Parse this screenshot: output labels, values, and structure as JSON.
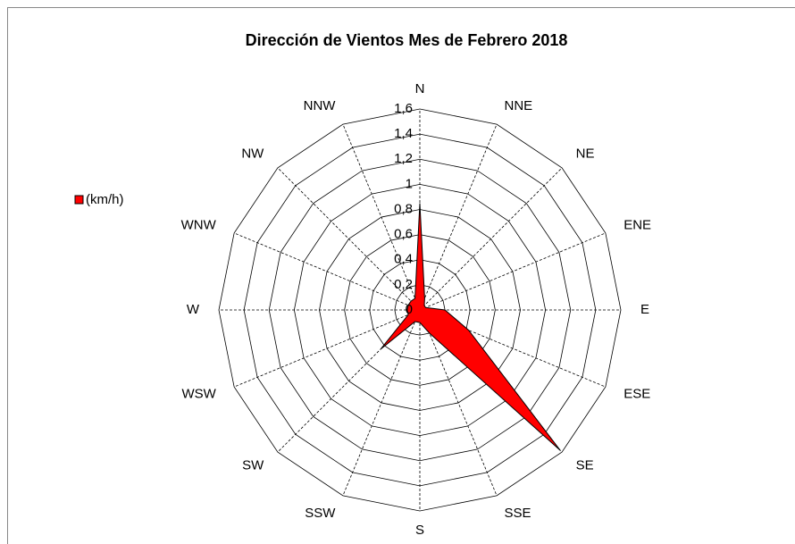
{
  "chart_data": {
    "type": "radar",
    "title": "Dirección de Vientos Mes de Febrero 2018",
    "categories": [
      "N",
      "NNE",
      "NE",
      "ENE",
      "E",
      "ESE",
      "SE",
      "SSE",
      "S",
      "SSW",
      "SW",
      "WSW",
      "W",
      "WNW",
      "NW",
      "NNW"
    ],
    "series": [
      {
        "name": "(km/h)",
        "color": "#ff0000",
        "values": [
          0.85,
          0.1,
          0.05,
          0.05,
          0.2,
          0.42,
          1.58,
          0.2,
          0.1,
          0.1,
          0.44,
          0.1,
          0.1,
          0.1,
          0.1,
          0.1
        ]
      }
    ],
    "ylim": [
      0,
      1.6
    ],
    "yticks": [
      0,
      {
        "value": 0.2,
        "label": "0,2"
      },
      {
        "value": 0.4,
        "label": "0,4"
      },
      {
        "value": 0.6,
        "label": "0,6"
      },
      {
        "value": 0.8,
        "label": "0,8"
      },
      1,
      {
        "value": 1.2,
        "label": "1,2"
      },
      {
        "value": 1.4,
        "label": "1,4"
      },
      {
        "value": 1.6,
        "label": "1,6"
      }
    ],
    "legend": "left"
  }
}
